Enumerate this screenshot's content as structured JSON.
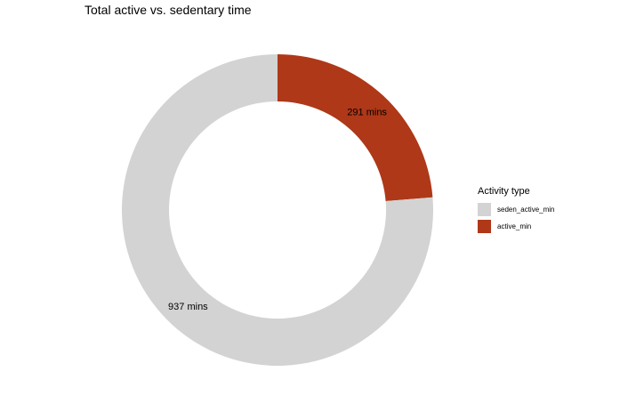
{
  "chart_data": {
    "type": "pie",
    "subtype": "donut",
    "title": "Total active vs. sedentary time",
    "slices": [
      {
        "name": "active_min",
        "value": 291,
        "label": "291 mins",
        "color": "#ae3818"
      },
      {
        "name": "seden_active_min",
        "value": 937,
        "label": "937 mins",
        "color": "#d3d3d3"
      }
    ],
    "legend": {
      "title": "Activity type",
      "position": "right",
      "items": [
        {
          "label": "seden_active_min",
          "color": "#d3d3d3"
        },
        {
          "label": "active_min",
          "color": "#ae3818"
        }
      ]
    }
  }
}
